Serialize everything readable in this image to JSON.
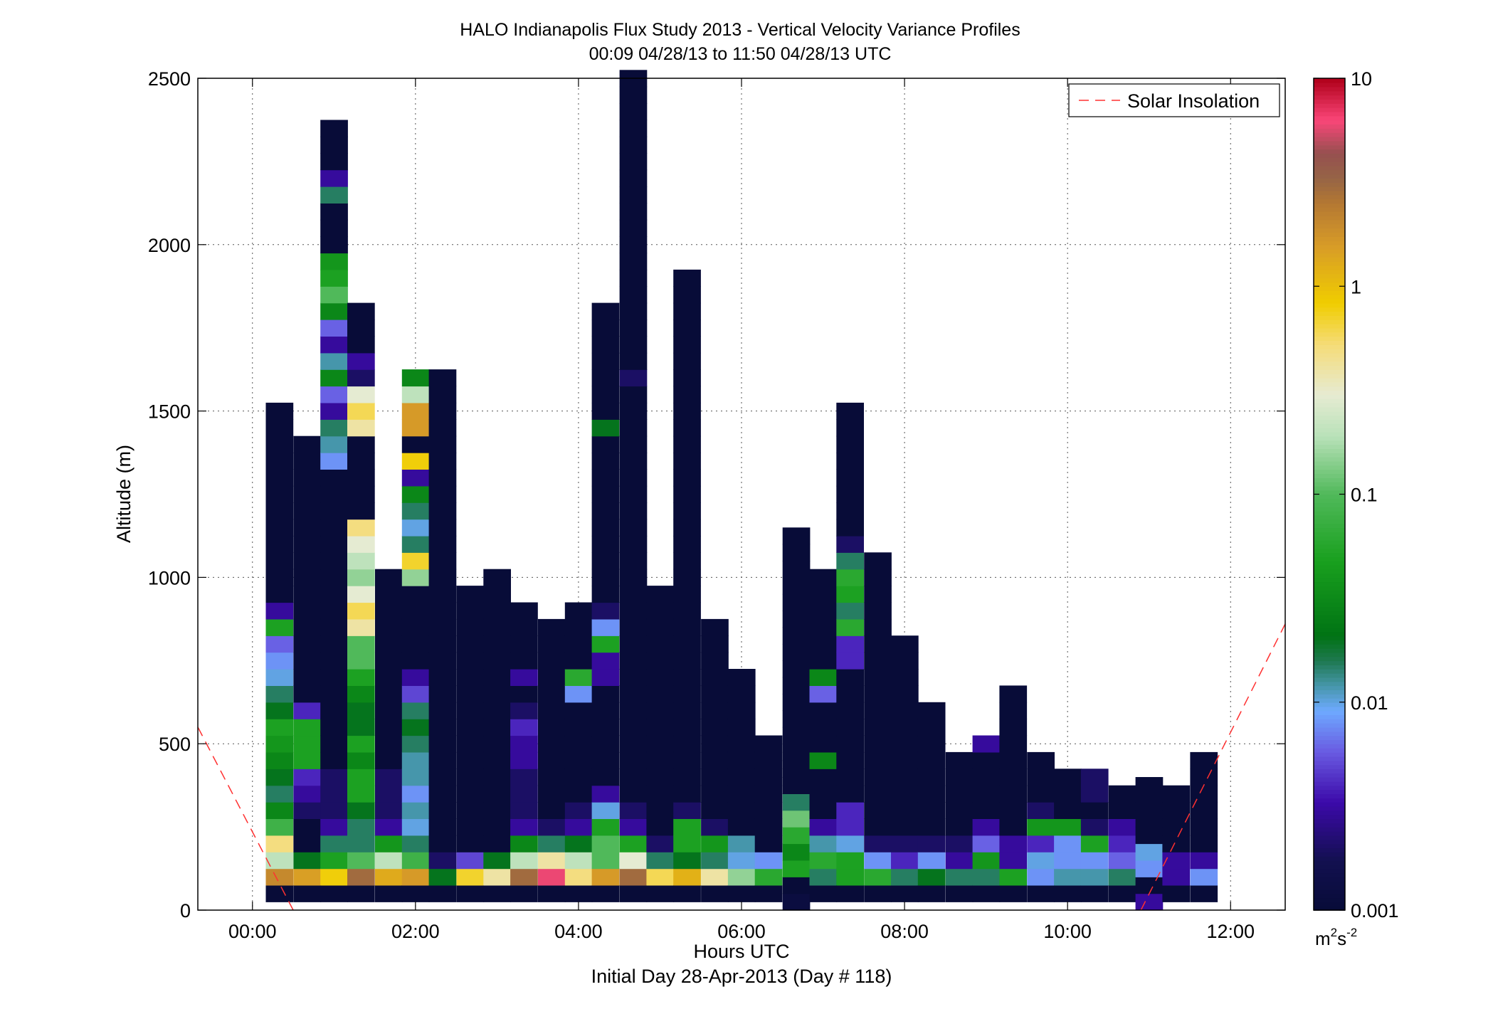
{
  "chart_data": {
    "type": "heatmap",
    "title": "HALO Indianapolis Flux Study 2013 - Vertical Velocity Variance Profiles",
    "subtitle": "00:09 04/28/13 to 11:50 04/28/13  UTC",
    "xlabel": "Hours UTC",
    "xlabel2": "Initial Day 28-Apr-2013 (Day # 118)",
    "ylabel": "Altitude (m)",
    "xlim": [
      -0.67,
      12.67
    ],
    "ylim": [
      0,
      2500
    ],
    "x_ticks": [
      0,
      2,
      4,
      6,
      8,
      10,
      12
    ],
    "x_tick_labels": [
      "00:00",
      "02:00",
      "04:00",
      "06:00",
      "08:00",
      "10:00",
      "12:00"
    ],
    "y_ticks": [
      0,
      500,
      1000,
      1500,
      2000,
      2500
    ],
    "y_tick_labels": [
      "0",
      "500",
      "1000",
      "1500",
      "2000",
      "2500"
    ],
    "grid": true,
    "legend": {
      "position": "top-right",
      "entries": [
        "Solar Insolation"
      ]
    },
    "colorbar": {
      "scale": "log",
      "min": 0.001,
      "max": 10,
      "ticks": [
        0.001,
        0.01,
        0.1,
        1,
        10
      ],
      "tick_labels": [
        "0.001",
        "0.01",
        "0.1",
        "1",
        "10"
      ],
      "unit_base": "m",
      "unit_exp1": "2",
      "unit_mid": "s",
      "unit_exp2": "-2"
    },
    "cell_width_hours": 0.333,
    "cell_height_m": 50,
    "columns": [
      {
        "t": 0.33,
        "z0": 25,
        "vals": [
          0.001,
          2,
          0.2,
          0.5,
          0.08,
          0.03,
          0.015,
          0.02,
          0.03,
          0.04,
          0.05,
          0.02,
          0.015,
          0.01,
          0.008,
          0.006,
          0.05,
          0.003,
          0.001,
          0.001,
          0.001,
          0.001,
          0.001,
          0.001,
          0.001,
          0.001,
          0.001,
          0.001,
          0.001,
          0.001
        ]
      },
      {
        "t": 0.67,
        "z0": 25,
        "vals": [
          0.001,
          1.5,
          0.02,
          0.001,
          0.001,
          0.002,
          0.003,
          0.004,
          0.05,
          0.05,
          0.05,
          0.004,
          0.001,
          0.001,
          0.001,
          0.001,
          0.001,
          0.001,
          0.001,
          0.001,
          0.001,
          0.001,
          0.001,
          0.001,
          0.001,
          0.001,
          0.001,
          0.001
        ]
      },
      {
        "t": 1.0,
        "z0": 25,
        "vals": [
          0.001,
          0.8,
          0.05,
          0.015,
          0.003,
          0.002,
          0.002,
          0.002,
          0.001,
          0.001,
          0.001,
          0.001,
          0.001,
          0.001,
          0.001,
          0.001,
          0.001,
          0.001,
          0.001,
          0.001,
          0.001,
          0.001,
          0.001,
          0.001,
          0.001,
          0.001,
          0.008,
          0.012,
          0.015,
          0.003,
          0.006,
          0.03,
          0.012,
          0.003,
          0.006,
          0.03,
          0.1,
          0.05,
          0.04,
          0.001,
          0.001,
          0.001,
          0.015,
          0.003,
          0.001,
          0.001,
          0.001
        ]
      },
      {
        "t": 1.33,
        "z0": 25,
        "vals": [
          0.001,
          3,
          0.1,
          0.015,
          0.015,
          0.02,
          0.05,
          0.05,
          0.03,
          0.05,
          0.02,
          0.02,
          0.03,
          0.05,
          0.1,
          0.1,
          0.4,
          0.6,
          0.3,
          0.15,
          0.2,
          0.3,
          0.5,
          0.001,
          0.001,
          0.001,
          0.001,
          0.001,
          0.4,
          0.6,
          0.3,
          0.002,
          0.003,
          0.001,
          0.001,
          0.001
        ]
      },
      {
        "t": 1.67,
        "z0": 25,
        "vals": [
          0.001,
          1.3,
          0.2,
          0.04,
          0.003,
          0.002,
          0.002,
          0.002,
          0.001,
          0.001,
          0.001,
          0.001,
          0.001,
          0.001,
          0.001,
          0.001,
          0.001,
          0.001,
          0.001,
          0.001
        ]
      },
      {
        "t": 2.0,
        "z0": 25,
        "vals": [
          0.001,
          1.6,
          0.08,
          0.015,
          0.01,
          0.012,
          0.008,
          0.012,
          0.012,
          0.015,
          0.02,
          0.015,
          0.005,
          0.003,
          0.001,
          0.001,
          0.001,
          0.001,
          0.001,
          0.15,
          0.7,
          0.015,
          0.01,
          0.015,
          0.03,
          0.003,
          0.8,
          0.001,
          1.6,
          1.6,
          0.2,
          0.03
        ]
      },
      {
        "t": 2.33,
        "z0": 25,
        "vals": [
          0.001,
          0.02,
          0.002,
          0.001,
          0.001,
          0.001,
          0.001,
          0.001,
          0.001,
          0.001,
          0.001,
          0.001,
          0.001,
          0.001,
          0.001,
          0.001,
          0.001,
          0.001,
          0.001,
          0.001,
          0.001,
          0.001,
          0.001,
          0.001,
          0.001,
          0.001,
          0.001,
          0.001,
          0.001,
          0.001,
          0.001,
          0.001
        ]
      },
      {
        "t": 2.67,
        "z0": 25,
        "vals": [
          0.001,
          0.7,
          0.005,
          0.001,
          0.001,
          0.001,
          0.001,
          0.001,
          0.001,
          0.001,
          0.001,
          0.001,
          0.001,
          0.001,
          0.001,
          0.001,
          0.001,
          0.001,
          0.001
        ]
      },
      {
        "t": 3.0,
        "z0": 25,
        "vals": [
          0.001,
          0.4,
          0.02,
          0.001,
          0.001,
          0.001,
          0.001,
          0.001,
          0.001,
          0.001,
          0.001,
          0.001,
          0.001,
          0.001,
          0.001,
          0.001,
          0.001,
          0.001,
          0.001,
          0.001
        ]
      },
      {
        "t": 3.33,
        "z0": 25,
        "vals": [
          0.001,
          3,
          0.2,
          0.03,
          0.003,
          0.002,
          0.002,
          0.002,
          0.003,
          0.003,
          0.004,
          0.002,
          0.001,
          0.003,
          0.001,
          0.001,
          0.001,
          0.001
        ]
      },
      {
        "t": 3.67,
        "z0": 25,
        "vals": [
          0.001,
          6,
          0.4,
          0.015,
          0.002,
          0.001,
          0.001,
          0.001,
          0.001,
          0.001,
          0.001,
          0.001,
          0.001,
          0.001,
          0.001,
          0.001,
          0.001
        ]
      },
      {
        "t": 4.0,
        "z0": 25,
        "vals": [
          0.001,
          0.5,
          0.2,
          0.02,
          0.003,
          0.002,
          0.001,
          0.001,
          0.001,
          0.001,
          0.001,
          0.001,
          0.008,
          0.06,
          0.001,
          0.001,
          0.001,
          0.001
        ]
      },
      {
        "t": 4.33,
        "z0": 25,
        "vals": [
          0.001,
          1.6,
          0.1,
          0.1,
          0.05,
          0.01,
          0.003,
          0.001,
          0.001,
          0.001,
          0.001,
          0.001,
          0.001,
          0.003,
          0.003,
          0.05,
          0.008,
          0.002,
          0.001,
          0.001,
          0.001,
          0.001,
          0.001,
          0.001,
          0.001,
          0.001,
          0.001,
          0.001,
          0.02,
          0.001,
          0.001,
          0.001,
          0.001,
          0.001,
          0.001,
          0.001
        ]
      },
      {
        "t": 4.67,
        "z0": 25,
        "vals": [
          0.001,
          3,
          0.3,
          0.05,
          0.003,
          0.002,
          0.001,
          0.001,
          0.001,
          0.001,
          0.001,
          0.001,
          0.001,
          0.001,
          0.001,
          0.001,
          0.001,
          0.001,
          0.001,
          0.001,
          0.001,
          0.001,
          0.001,
          0.001,
          0.001,
          0.001,
          0.001,
          0.001,
          0.001,
          0.001,
          0.001,
          0.002,
          0.001,
          0.001,
          0.001,
          0.001,
          0.001,
          0.001,
          0.001,
          0.001,
          0.001,
          0.001,
          0.001,
          0.001,
          0.001,
          0.001,
          0.001,
          0.001,
          0.001,
          0.001
        ]
      },
      {
        "t": 5.0,
        "z0": 25,
        "vals": [
          0.001,
          0.6,
          0.015,
          0.002,
          0.001,
          0.001,
          0.001,
          0.001,
          0.001,
          0.001,
          0.001,
          0.001,
          0.001,
          0.001,
          0.001,
          0.001,
          0.001,
          0.001,
          0.001
        ]
      },
      {
        "t": 5.33,
        "z0": 25,
        "vals": [
          0.001,
          1.2,
          0.02,
          0.05,
          0.05,
          0.002,
          0.001,
          0.001,
          0.001,
          0.001,
          0.001,
          0.001,
          0.001,
          0.001,
          0.001,
          0.001,
          0.001,
          0.001,
          0.001,
          0.001,
          0.001,
          0.001,
          0.001,
          0.001,
          0.001,
          0.001,
          0.001,
          0.001,
          0.001,
          0.001,
          0.001,
          0.001,
          0.001,
          0.001,
          0.001,
          0.001,
          0.001,
          0.001
        ]
      },
      {
        "t": 5.67,
        "z0": 25,
        "vals": [
          0.001,
          0.4,
          0.015,
          0.04,
          0.002,
          0.001,
          0.001,
          0.001,
          0.001,
          0.001,
          0.001,
          0.001,
          0.001,
          0.001,
          0.001,
          0.001,
          0.001
        ]
      },
      {
        "t": 6.0,
        "z0": 25,
        "vals": [
          0.001,
          0.15,
          0.01,
          0.012,
          0.001,
          0.001,
          0.001,
          0.001,
          0.001,
          0.001,
          0.001,
          0.001,
          0.001,
          0.001
        ]
      },
      {
        "t": 6.33,
        "z0": 25,
        "vals": [
          0.001,
          0.06,
          0.008,
          0.001,
          0.001,
          0.001,
          0.001,
          0.001,
          0.001,
          0.001
        ]
      },
      {
        "t": 6.67,
        "z0": 0,
        "vals": [
          0.0012,
          0.001,
          0.05,
          0.03,
          0.06,
          0.12,
          0.015,
          0.001,
          0.001,
          0.001,
          0.001,
          0.001,
          0.001,
          0.001,
          0.001,
          0.001,
          0.001,
          0.001,
          0.001,
          0.001,
          0.001,
          0.001,
          0.001
        ]
      },
      {
        "t": 7.0,
        "z0": 25,
        "vals": [
          0.001,
          0.015,
          0.06,
          0.012,
          0.003,
          0.001,
          0.001,
          0.001,
          0.03,
          0.001,
          0.001,
          0.001,
          0.006,
          0.03,
          0.001,
          0.001,
          0.001,
          0.001,
          0.001,
          0.001
        ]
      },
      {
        "t": 7.33,
        "z0": 25,
        "vals": [
          0.001,
          0.05,
          0.05,
          0.01,
          0.004,
          0.004,
          0.001,
          0.001,
          0.001,
          0.001,
          0.001,
          0.001,
          0.001,
          0.001,
          0.004,
          0.004,
          0.06,
          0.015,
          0.05,
          0.06,
          0.015,
          0.002,
          0.001,
          0.001,
          0.001,
          0.001,
          0.001,
          0.001,
          0.001,
          0.001
        ]
      },
      {
        "t": 7.67,
        "z0": 25,
        "vals": [
          0.001,
          0.06,
          0.008,
          0.002,
          0.001,
          0.001,
          0.001,
          0.001,
          0.001,
          0.001,
          0.001,
          0.001,
          0.001,
          0.001,
          0.001,
          0.001,
          0.001,
          0.001,
          0.001,
          0.001,
          0.001
        ]
      },
      {
        "t": 8.0,
        "z0": 25,
        "vals": [
          0.001,
          0.015,
          0.004,
          0.002,
          0.001,
          0.001,
          0.001,
          0.001,
          0.001,
          0.001,
          0.001,
          0.001,
          0.001,
          0.001,
          0.001,
          0.001
        ]
      },
      {
        "t": 8.33,
        "z0": 25,
        "vals": [
          0.001,
          0.02,
          0.008,
          0.002,
          0.001,
          0.001,
          0.001,
          0.001,
          0.001,
          0.001,
          0.001,
          0.001
        ]
      },
      {
        "t": 8.67,
        "z0": 25,
        "vals": [
          0.001,
          0.015,
          0.003,
          0.002,
          0.001,
          0.001,
          0.001,
          0.001,
          0.001
        ]
      },
      {
        "t": 9.0,
        "z0": 25,
        "vals": [
          0.001,
          0.015,
          0.04,
          0.006,
          0.003,
          0.001,
          0.001,
          0.001,
          0.001,
          0.003
        ]
      },
      {
        "t": 9.33,
        "z0": 25,
        "vals": [
          0.001,
          0.05,
          0.003,
          0.003,
          0.001,
          0.001,
          0.001,
          0.001,
          0.001,
          0.001,
          0.001,
          0.001,
          0.001
        ]
      },
      {
        "t": 9.67,
        "z0": 25,
        "vals": [
          0.001,
          0.008,
          0.01,
          0.004,
          0.04,
          0.002,
          0.001,
          0.001,
          0.001
        ]
      },
      {
        "t": 10.0,
        "z0": 25,
        "vals": [
          0.001,
          0.012,
          0.008,
          0.008,
          0.04,
          0.001,
          0.001,
          0.001
        ]
      },
      {
        "t": 10.33,
        "z0": 25,
        "vals": [
          0.001,
          0.012,
          0.008,
          0.05,
          0.002,
          0.001,
          0.002,
          0.002
        ]
      },
      {
        "t": 10.67,
        "z0": 25,
        "vals": [
          0.001,
          0.015,
          0.006,
          0.004,
          0.003,
          0.001,
          0.001
        ]
      },
      {
        "t": 11.0,
        "z0": 0,
        "vals": [
          0.003,
          0.001,
          0.008,
          0.01,
          0.001,
          0.001,
          0.001,
          0.001
        ]
      },
      {
        "t": 11.33,
        "z0": 25,
        "vals": [
          0.001,
          0.003,
          0.003,
          0.001,
          0.001,
          0.001,
          0.001
        ]
      },
      {
        "t": 11.67,
        "z0": 25,
        "vals": [
          0.001,
          0.008,
          0.003,
          0.001,
          0.001,
          0.001,
          0.001,
          0.001,
          0.001
        ]
      }
    ],
    "solar_insolation_line": {
      "segments": [
        [
          [
            -0.67,
            550
          ],
          [
            0.5,
            0
          ]
        ],
        [
          [
            10.9,
            0
          ],
          [
            12.67,
            860
          ]
        ]
      ],
      "color": "#ff0000",
      "dash": "dashed"
    }
  }
}
